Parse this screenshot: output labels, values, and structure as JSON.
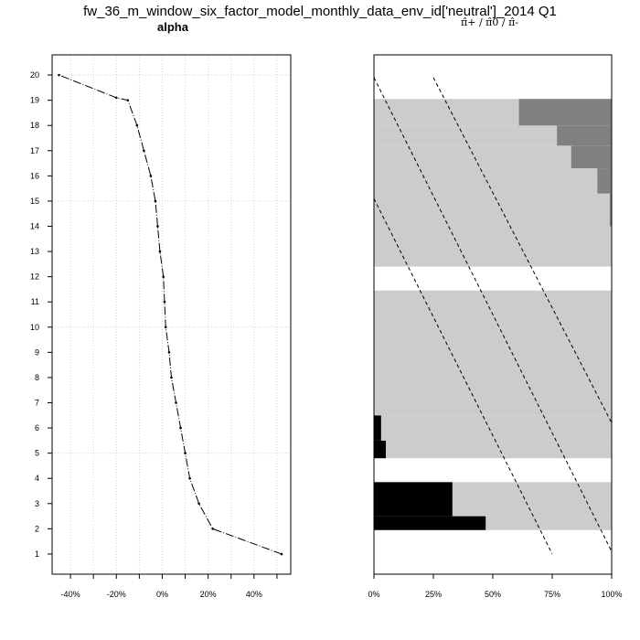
{
  "title": "fw_36_m_window_six_factor_model_monthly_data_env_id['neutral']_2014 Q1",
  "chart_data": [
    {
      "type": "line",
      "title": "alpha",
      "y_ticks": [
        "1",
        "2",
        "3",
        "4",
        "5",
        "6",
        "7",
        "8",
        "9",
        "10",
        "11",
        "12",
        "13",
        "14",
        "15",
        "16",
        "17",
        "18",
        "19",
        "20"
      ],
      "x_ticks": [
        "-40%",
        "-20%",
        "0%",
        "20%",
        "40%"
      ],
      "x_tick_values": [
        -40,
        -20,
        0,
        20,
        40
      ],
      "xlim": [
        -48,
        56
      ],
      "ylim": [
        0.2,
        20.8
      ],
      "grid": true,
      "series": [
        {
          "x": [
            52,
            22,
            16,
            12,
            10,
            8,
            6,
            4,
            3,
            1.5,
            1,
            0.5,
            -1,
            -2,
            -3,
            -5,
            -8,
            -11,
            -15,
            -20,
            -45
          ],
          "y": [
            1,
            2,
            3,
            4,
            5,
            6,
            7,
            8,
            9,
            10,
            11,
            12,
            13,
            14,
            15,
            16,
            17,
            18,
            19,
            19.1,
            20
          ]
        }
      ]
    },
    {
      "type": "area",
      "title": "π̂+ / π̂0 / π̂-",
      "x_ticks": [
        "0%",
        "25%",
        "50%",
        "75%",
        "100%"
      ],
      "x_tick_values": [
        0,
        25,
        50,
        75,
        100
      ],
      "xlim": [
        0,
        100
      ],
      "ylim": [
        0.2,
        20.8
      ],
      "colors": {
        "neg": "#000000",
        "zero": "#cccccc",
        "pos": "#808080"
      },
      "bands": [
        {
          "y_from": 1.95,
          "y_to": 2.5,
          "neg": 47,
          "pos": 0
        },
        {
          "y_from": 2.5,
          "y_to": 3.85,
          "neg": 33,
          "pos": 0
        },
        {
          "y_from": 4.8,
          "y_to": 5.5,
          "neg": 5,
          "pos": 0
        },
        {
          "y_from": 5.5,
          "y_to": 6.5,
          "neg": 3,
          "pos": 0
        },
        {
          "y_from": 6.5,
          "y_to": 11.45,
          "neg": 0,
          "pos": 0
        },
        {
          "y_from": 12.4,
          "y_to": 14.0,
          "neg": 0,
          "pos": 0
        },
        {
          "y_from": 14.0,
          "y_to": 15.3,
          "neg": 0,
          "pos": 0.8
        },
        {
          "y_from": 15.3,
          "y_to": 16.3,
          "neg": 0,
          "pos": 6
        },
        {
          "y_from": 16.3,
          "y_to": 17.2,
          "neg": 0,
          "pos": 17
        },
        {
          "y_from": 17.2,
          "y_to": 18.0,
          "neg": 0,
          "pos": 23
        },
        {
          "y_from": 18.0,
          "y_to": 19.05,
          "neg": 0,
          "pos": 39
        }
      ],
      "dashed_lines": [
        {
          "x": [
            25,
            100
          ],
          "y": [
            19.9,
            6.2
          ]
        },
        {
          "x": [
            0,
            100
          ],
          "y": [
            19.9,
            1.1
          ]
        },
        {
          "x": [
            0,
            75
          ],
          "y": [
            15.1,
            1.0
          ]
        }
      ]
    }
  ]
}
